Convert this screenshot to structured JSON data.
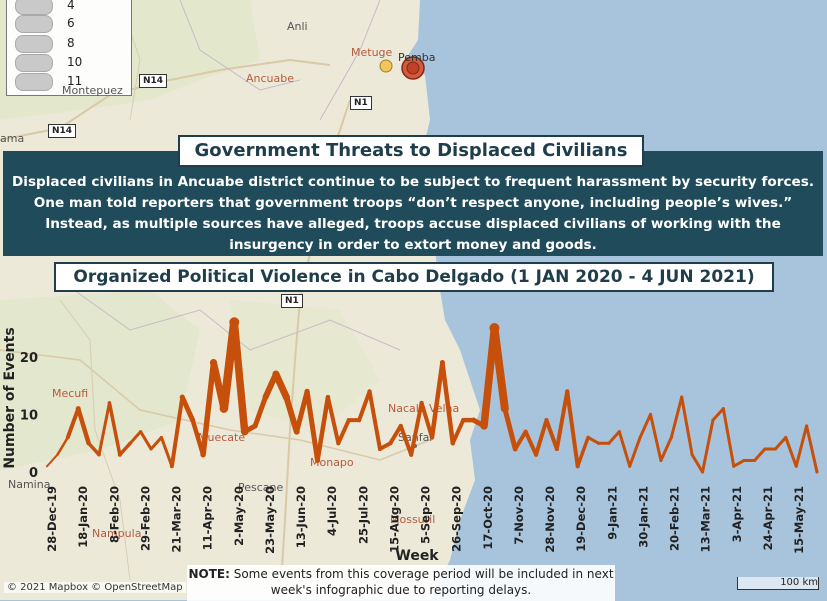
{
  "legend": {
    "items": [
      "4",
      "6",
      "8",
      "10",
      "11"
    ]
  },
  "places": {
    "anli": "Anli",
    "metuge": "Metuge",
    "pemba": "Pemba",
    "ancuabe": "Ancuabe",
    "montepuez": "Montepuez",
    "balama": "ama",
    "mecufi": "Mecufi",
    "nampula": "Nampula",
    "namina": "Namina",
    "muecate": "Muecate",
    "monapo": "Monapo",
    "pescane": "Pescane",
    "nacala_velha": "Nacala Velha",
    "sanfar": "Sanfar",
    "mossuril": "Mossuril"
  },
  "roads": {
    "n14a": "N14",
    "n14b": "N14",
    "n1a": "N1",
    "n1b": "N1"
  },
  "title_threats": "Government Threats to Displaced Civilians",
  "description": "Displaced civilians in Ancuabe district continue to be subject to frequent harassment by security forces. One man told reporters that government troops “don’t respect anyone, including people’s wives.” Instead, as multiple sources have alleged, troops accuse displaced civilians of working with the insurgency in order to extort money and goods.",
  "title_chart": "Organized Political Violence in Cabo Delgado (1 JAN 2020 - 4 JUN 2021)",
  "note_label": "NOTE:",
  "note_text": " Some events from this coverage period will be included in next week's infographic due to reporting delays.",
  "copyright": "© 2021 Mapbox © OpenStreetMap",
  "scale_label": "100 km",
  "colors": {
    "line": "#c6500b",
    "banner": "#1f4b5b",
    "title_text": "#1f3d4a"
  },
  "chart_data": {
    "type": "line",
    "title": "Organized Political Violence in Cabo Delgado (1 JAN 2020 - 4 JUN 2021)",
    "xlabel": "Week",
    "ylabel": "Number of Events",
    "ylim": [
      0,
      25
    ],
    "yticks": [
      0,
      10,
      20
    ],
    "xtick_labels": [
      "28-Dec-19",
      "18-Jan-20",
      "8-Feb-20",
      "29-Feb-20",
      "21-Mar-20",
      "11-Apr-20",
      "2-May-20",
      "23-May-20",
      "13-Jun-20",
      "4-Jul-20",
      "25-Jul-20",
      "15-Aug-20",
      "5-Sep-20",
      "26-Sep-20",
      "17-Oct-20",
      "7-Nov-20",
      "28-Nov-20",
      "19-Dec-20",
      "9-Jan-21",
      "30-Jan-21",
      "20-Feb-21",
      "13-Mar-21",
      "3-Apr-21",
      "24-Apr-21",
      "15-May-21"
    ],
    "series": [
      {
        "name": "Events",
        "values": [
          1,
          3,
          6,
          11,
          5,
          3,
          12,
          3,
          5,
          7,
          4,
          6,
          1,
          13,
          9,
          3,
          19,
          11,
          26,
          7,
          8,
          13,
          17,
          13,
          7,
          14,
          2,
          13,
          5,
          9,
          9,
          14,
          4,
          5,
          8,
          3,
          12,
          6,
          19,
          5,
          9,
          9,
          8,
          25,
          11,
          4,
          7,
          3,
          9,
          4,
          14,
          1,
          6,
          5,
          5,
          7,
          1,
          6,
          10,
          2,
          6,
          13,
          3,
          0,
          9,
          11,
          1,
          2,
          2,
          4,
          4,
          6,
          1,
          8,
          0
        ],
        "widths": [
          2,
          2,
          3,
          5,
          4,
          3,
          3,
          4,
          3,
          3,
          3,
          3,
          3,
          5,
          5,
          4,
          7,
          7,
          10,
          5,
          5,
          5,
          7,
          7,
          5,
          5,
          5,
          4,
          4,
          4,
          4,
          4,
          4,
          4,
          4,
          4,
          4,
          4,
          5,
          4,
          4,
          5,
          5,
          10,
          6,
          4,
          4,
          4,
          4,
          4,
          4,
          4,
          3,
          3,
          3,
          3,
          3,
          3,
          3,
          3,
          3,
          3,
          3,
          3,
          3,
          3,
          3,
          3,
          3,
          3,
          3,
          3,
          3,
          3,
          3
        ]
      }
    ]
  }
}
